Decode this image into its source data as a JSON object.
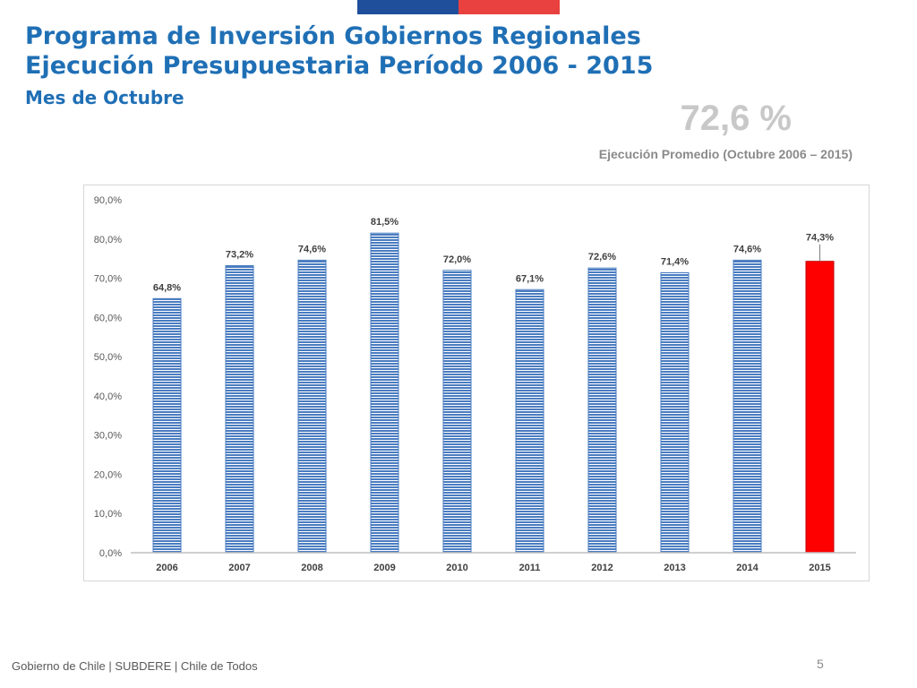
{
  "header": {
    "title_line1": "Programa de Inversión Gobiernos Regionales",
    "title_line2": "Ejecución Presupuestaria Período 2006 - 2015",
    "subtitle": "Mes de Octubre"
  },
  "summary": {
    "value": "72,6 %",
    "label": "Ejecución Promedio (Octubre 2006 – 2015)"
  },
  "colors": {
    "flag_blue": "#1f4e9a",
    "flag_red": "#e8413f",
    "bar_blue": "#4a7cc0",
    "bar_red": "#ff0000",
    "title": "#1f6fb5"
  },
  "chart_data": {
    "type": "bar",
    "categories": [
      "2006",
      "2007",
      "2008",
      "2009",
      "2010",
      "2011",
      "2012",
      "2013",
      "2014",
      "2015"
    ],
    "values": [
      64.8,
      73.2,
      74.6,
      81.5,
      72.0,
      67.1,
      72.6,
      71.4,
      74.6,
      74.3
    ],
    "data_labels": [
      "64,8%",
      "73,2%",
      "74,6%",
      "81,5%",
      "72,0%",
      "67,1%",
      "72,6%",
      "71,4%",
      "74,6%",
      "74,3%"
    ],
    "highlight_index": 9,
    "y_ticks": [
      "0,0%",
      "10,0%",
      "20,0%",
      "30,0%",
      "40,0%",
      "50,0%",
      "60,0%",
      "70,0%",
      "80,0%",
      "90,0%"
    ],
    "ylim": [
      0,
      90
    ],
    "grid": false,
    "legend": "none",
    "title": "",
    "xlabel": "",
    "ylabel": ""
  },
  "footer": {
    "text": "Gobierno de Chile | SUBDERE | Chile de Todos",
    "page_number": "5"
  }
}
